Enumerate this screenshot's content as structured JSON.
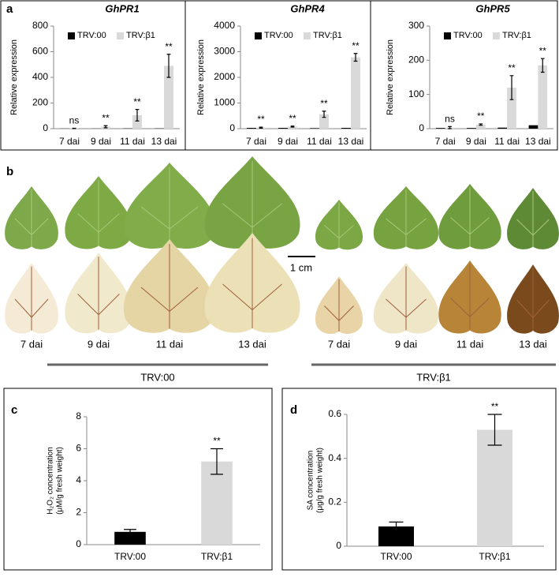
{
  "panel_labels": [
    "a",
    "b",
    "c",
    "d"
  ],
  "photo_panel": {
    "day_labels": [
      "7 dai",
      "9 dai",
      "11 dai",
      "13 dai",
      "7 dai",
      "9 dai",
      "11 dai",
      "13 dai"
    ],
    "groups": [
      "TRV:00",
      "TRV:β1"
    ],
    "scale_bar": "1 cm"
  },
  "chart_data": [
    {
      "type": "bar",
      "title": "GhPR1",
      "y_label": [
        "Relative expression"
      ],
      "categories": [
        "7 dai",
        "9 dai",
        "11 dai",
        "13 dai"
      ],
      "series": [
        {
          "name": "TRV:00",
          "color": "#000000",
          "values": [
            1,
            1,
            2,
            2
          ]
        },
        {
          "name": "TRV:β1",
          "color": "#d9d9d9",
          "values": [
            2,
            15,
            105,
            490
          ],
          "errors": [
            1,
            8,
            45,
            90
          ]
        }
      ],
      "annotations": [
        "ns",
        "**",
        "**",
        "**"
      ],
      "ylim": [
        0,
        800
      ],
      "yticks": [
        0,
        200,
        400,
        600,
        800
      ]
    },
    {
      "type": "bar",
      "title": "GhPR4",
      "y_label": [
        "Relative expression"
      ],
      "categories": [
        "7 dai",
        "9 dai",
        "11 dai",
        "13 dai"
      ],
      "series": [
        {
          "name": "TRV:00",
          "color": "#000000",
          "values": [
            30,
            30,
            20,
            30
          ]
        },
        {
          "name": "TRV:β1",
          "color": "#d9d9d9",
          "values": [
            40,
            80,
            560,
            2780
          ],
          "errors": [
            20,
            20,
            120,
            150
          ]
        }
      ],
      "annotations": [
        "**",
        "**",
        "**",
        "**"
      ],
      "ylim": [
        0,
        4000
      ],
      "yticks": [
        0,
        1000,
        2000,
        3000,
        4000
      ]
    },
    {
      "type": "bar",
      "title": "GhPR5",
      "y_label": [
        "Relative expression"
      ],
      "categories": [
        "7 dai",
        "9 dai",
        "11 dai",
        "13 dai"
      ],
      "series": [
        {
          "name": "TRV:00",
          "color": "#000000",
          "values": [
            2,
            2,
            3,
            10
          ]
        },
        {
          "name": "TRV:β1",
          "color": "#d9d9d9",
          "values": [
            3,
            12,
            120,
            185
          ],
          "errors": [
            3,
            2,
            35,
            20
          ]
        }
      ],
      "annotations": [
        "ns",
        "**",
        "**",
        "**"
      ],
      "ylim": [
        0,
        300
      ],
      "yticks": [
        0,
        100,
        200,
        300
      ]
    },
    {
      "type": "bar",
      "y_label": [
        "H₂O₂ concentration",
        "(μM/g  fresh weight)"
      ],
      "categories": [
        "TRV:00",
        "TRV:β1"
      ],
      "series": [
        {
          "colors": [
            "#000000",
            "#d9d9d9"
          ],
          "values": [
            0.8,
            5.2
          ],
          "errors": [
            0.15,
            0.8
          ]
        }
      ],
      "annotations": [
        null,
        "**"
      ],
      "ylim": [
        0,
        8
      ],
      "yticks": [
        0,
        2,
        4,
        6,
        8
      ]
    },
    {
      "type": "bar",
      "y_label": [
        "SA concentration",
        "(μg/g fresh weight)"
      ],
      "categories": [
        "TRV:00",
        "TRV:β1"
      ],
      "series": [
        {
          "colors": [
            "#000000",
            "#d9d9d9"
          ],
          "values": [
            0.09,
            0.53
          ],
          "errors": [
            0.02,
            0.07
          ]
        }
      ],
      "annotations": [
        null,
        "**"
      ],
      "ylim": [
        0,
        0.6
      ],
      "yticks": [
        0,
        0.2,
        0.4,
        0.6
      ]
    }
  ]
}
